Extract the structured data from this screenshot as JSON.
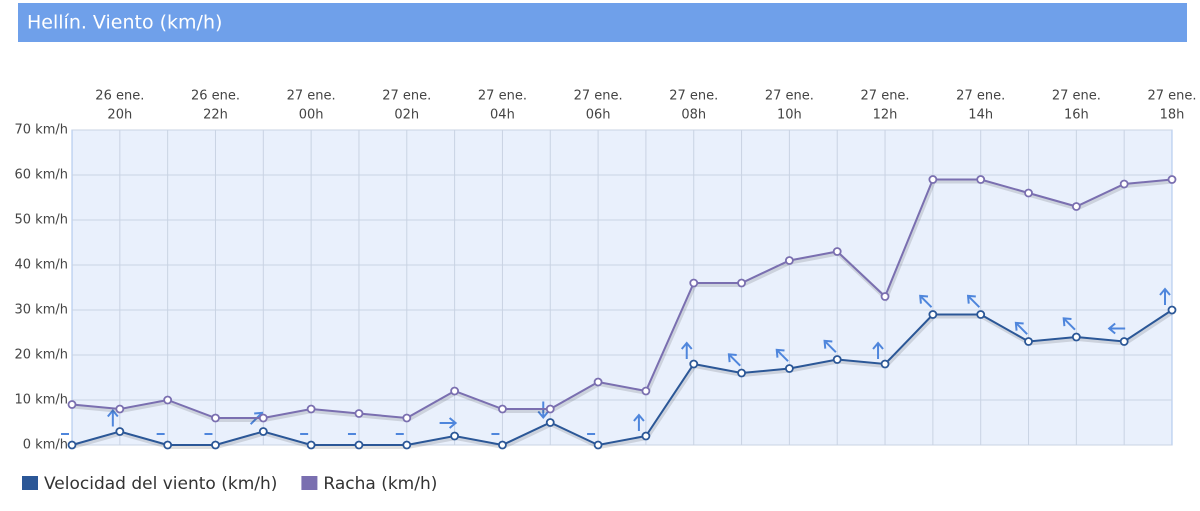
{
  "chart_data": {
    "type": "line",
    "title": "Hellín. Viento (km/h)",
    "categories": [
      null,
      [
        "26 ene.",
        "20h"
      ],
      null,
      [
        "26 ene.",
        "22h"
      ],
      null,
      [
        "27 ene.",
        "00h"
      ],
      null,
      [
        "27 ene.",
        "02h"
      ],
      null,
      [
        "27 ene.",
        "04h"
      ],
      null,
      [
        "27 ene.",
        "06h"
      ],
      null,
      [
        "27 ene.",
        "08h"
      ],
      null,
      [
        "27 ene.",
        "10h"
      ],
      null,
      [
        "27 ene.",
        "12h"
      ],
      null,
      [
        "27 ene.",
        "14h"
      ],
      null,
      [
        "27 ene.",
        "16h"
      ],
      null,
      [
        "27 ene.",
        "18h"
      ]
    ],
    "series": [
      {
        "name": "Velocidad del viento (km/h)",
        "color": "#2b5797",
        "values": [
          0,
          3,
          0,
          0,
          3,
          0,
          0,
          0,
          2,
          0,
          5,
          0,
          2,
          18,
          16,
          17,
          19,
          18,
          29,
          29,
          23,
          24,
          23,
          30
        ],
        "directions": [
          null,
          0,
          null,
          null,
          45,
          null,
          null,
          null,
          90,
          null,
          180,
          null,
          0,
          0,
          315,
          315,
          315,
          0,
          315,
          315,
          315,
          315,
          270,
          0
        ]
      },
      {
        "name": "Racha (km/h)",
        "color": "#7a6fb0",
        "values": [
          9,
          8,
          10,
          6,
          6,
          8,
          7,
          6,
          12,
          8,
          8,
          14,
          12,
          36,
          36,
          41,
          43,
          33,
          59,
          59,
          56,
          53,
          58,
          59
        ]
      }
    ],
    "ylim": [
      0,
      70
    ],
    "yticks": [
      {
        "value": 0,
        "label": "0 km/h"
      },
      {
        "value": 10,
        "label": "10 km/h"
      },
      {
        "value": 20,
        "label": "20 km/h"
      },
      {
        "value": 30,
        "label": "30 km/h"
      },
      {
        "value": 40,
        "label": "40 km/h"
      },
      {
        "value": 50,
        "label": "50 km/h"
      },
      {
        "value": 60,
        "label": "60 km/h"
      },
      {
        "value": 70,
        "label": "70 km/h"
      }
    ],
    "grid": true
  }
}
